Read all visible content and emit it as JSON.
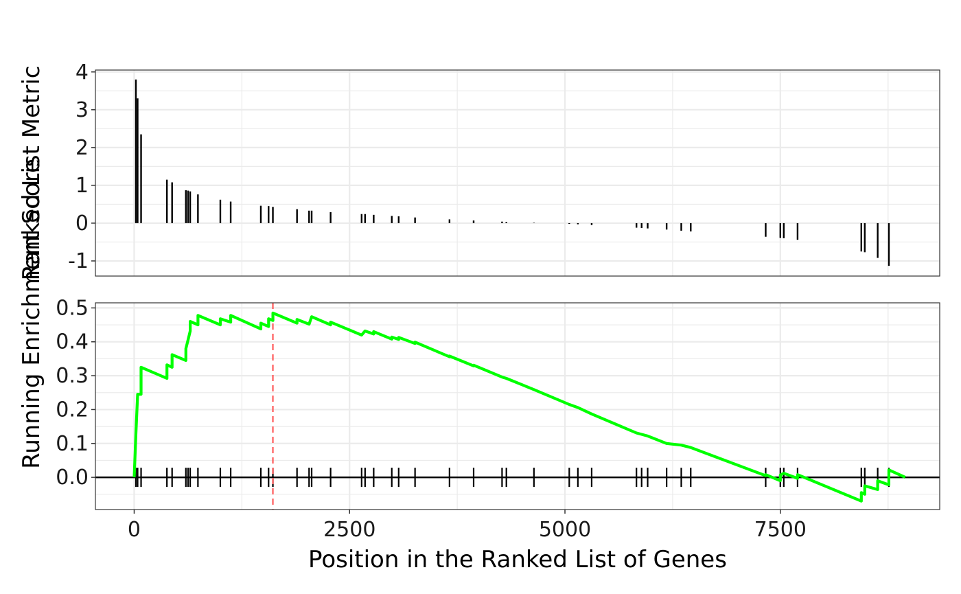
{
  "chart_data": {
    "type": "line",
    "xlabel": "Position in the Ranked List of Genes",
    "x_ticks": [
      0,
      2500,
      5000,
      7500
    ],
    "xlim": [
      -450,
      9350
    ],
    "colors": {
      "running_es": "#00ff00",
      "peak_line": "#ff5a5a",
      "hits": "#000000",
      "panel_border": "#333333",
      "grid": "#ebebeb"
    },
    "top_panel": {
      "ylabel": "Ranked List Metric",
      "ylim": [
        -1.4,
        4.05
      ],
      "y_ticks": [
        4,
        3,
        2,
        1,
        0,
        -1
      ],
      "y_tick_labels": [
        "4",
        "3",
        "2",
        "1",
        "0",
        "-1"
      ],
      "bars": [
        {
          "x": 20,
          "y": 3.8
        },
        {
          "x": 40,
          "y": 3.3
        },
        {
          "x": 80,
          "y": 2.35
        },
        {
          "x": 380,
          "y": 1.15
        },
        {
          "x": 440,
          "y": 1.08
        },
        {
          "x": 600,
          "y": 0.87
        },
        {
          "x": 625,
          "y": 0.86
        },
        {
          "x": 650,
          "y": 0.84
        },
        {
          "x": 740,
          "y": 0.76
        },
        {
          "x": 1000,
          "y": 0.62
        },
        {
          "x": 1120,
          "y": 0.57
        },
        {
          "x": 1470,
          "y": 0.46
        },
        {
          "x": 1560,
          "y": 0.45
        },
        {
          "x": 1610,
          "y": 0.43
        },
        {
          "x": 1890,
          "y": 0.37
        },
        {
          "x": 2030,
          "y": 0.33
        },
        {
          "x": 2060,
          "y": 0.33
        },
        {
          "x": 2280,
          "y": 0.29
        },
        {
          "x": 2640,
          "y": 0.24
        },
        {
          "x": 2680,
          "y": 0.24
        },
        {
          "x": 2780,
          "y": 0.22
        },
        {
          "x": 2990,
          "y": 0.19
        },
        {
          "x": 3070,
          "y": 0.18
        },
        {
          "x": 3260,
          "y": 0.15
        },
        {
          "x": 3660,
          "y": 0.1
        },
        {
          "x": 3940,
          "y": 0.07
        },
        {
          "x": 4270,
          "y": 0.04
        },
        {
          "x": 4320,
          "y": 0.03
        },
        {
          "x": 4640,
          "y": 0.01
        },
        {
          "x": 5050,
          "y": -0.02
        },
        {
          "x": 5150,
          "y": -0.03
        },
        {
          "x": 5310,
          "y": -0.05
        },
        {
          "x": 5830,
          "y": -0.12
        },
        {
          "x": 5890,
          "y": -0.13
        },
        {
          "x": 5960,
          "y": -0.14
        },
        {
          "x": 6180,
          "y": -0.17
        },
        {
          "x": 6350,
          "y": -0.2
        },
        {
          "x": 6460,
          "y": -0.22
        },
        {
          "x": 7330,
          "y": -0.36
        },
        {
          "x": 7500,
          "y": -0.39
        },
        {
          "x": 7540,
          "y": -0.4
        },
        {
          "x": 7700,
          "y": -0.44
        },
        {
          "x": 8440,
          "y": -0.75
        },
        {
          "x": 8480,
          "y": -0.77
        },
        {
          "x": 8630,
          "y": -0.92
        },
        {
          "x": 8760,
          "y": -1.13
        }
      ]
    },
    "bottom_panel": {
      "ylabel": "Running Enrichment Score",
      "ylim": [
        -0.095,
        0.515
      ],
      "y_ticks": [
        0.5,
        0.4,
        0.3,
        0.2,
        0.1,
        0.0
      ],
      "y_tick_labels": [
        "0.5",
        "0.4",
        "0.3",
        "0.2",
        "0.1",
        "0.0"
      ],
      "peak_x": 1610,
      "hit_positions": [
        20,
        40,
        80,
        380,
        440,
        600,
        625,
        650,
        740,
        1000,
        1120,
        1470,
        1560,
        1610,
        1890,
        2030,
        2060,
        2280,
        2640,
        2680,
        2780,
        2990,
        3070,
        3260,
        3660,
        3940,
        4270,
        4320,
        4640,
        5050,
        5150,
        5310,
        5830,
        5890,
        5960,
        6180,
        6350,
        6460,
        7330,
        7500,
        7540,
        7700,
        8440,
        8480,
        8630,
        8760
      ],
      "running_es": [
        [
          0,
          0.0
        ],
        [
          20,
          0.13
        ],
        [
          40,
          0.245
        ],
        [
          80,
          0.245
        ],
        [
          80,
          0.325
        ],
        [
          380,
          0.292
        ],
        [
          380,
          0.332
        ],
        [
          440,
          0.325
        ],
        [
          440,
          0.362
        ],
        [
          600,
          0.345
        ],
        [
          600,
          0.38
        ],
        [
          625,
          0.405
        ],
        [
          650,
          0.432
        ],
        [
          650,
          0.46
        ],
        [
          740,
          0.45
        ],
        [
          740,
          0.478
        ],
        [
          1000,
          0.45
        ],
        [
          1000,
          0.468
        ],
        [
          1120,
          0.458
        ],
        [
          1120,
          0.478
        ],
        [
          1470,
          0.438
        ],
        [
          1470,
          0.455
        ],
        [
          1560,
          0.445
        ],
        [
          1560,
          0.468
        ],
        [
          1610,
          0.463
        ],
        [
          1610,
          0.485
        ],
        [
          1890,
          0.455
        ],
        [
          1890,
          0.466
        ],
        [
          2030,
          0.452
        ],
        [
          2060,
          0.474
        ],
        [
          2280,
          0.45
        ],
        [
          2280,
          0.458
        ],
        [
          2640,
          0.42
        ],
        [
          2680,
          0.432
        ],
        [
          2780,
          0.423
        ],
        [
          2780,
          0.43
        ],
        [
          2990,
          0.408
        ],
        [
          2990,
          0.414
        ],
        [
          3070,
          0.407
        ],
        [
          3070,
          0.413
        ],
        [
          3260,
          0.395
        ],
        [
          3260,
          0.399
        ],
        [
          3660,
          0.356
        ],
        [
          3660,
          0.358
        ],
        [
          3940,
          0.329
        ],
        [
          3940,
          0.331
        ],
        [
          4270,
          0.296
        ],
        [
          4320,
          0.292
        ],
        [
          4640,
          0.259
        ],
        [
          5050,
          0.215
        ],
        [
          5150,
          0.206
        ],
        [
          5310,
          0.187
        ],
        [
          5830,
          0.131
        ],
        [
          5890,
          0.127
        ],
        [
          5960,
          0.122
        ],
        [
          6180,
          0.1
        ],
        [
          6350,
          0.095
        ],
        [
          6460,
          0.088
        ],
        [
          7330,
          0.005
        ],
        [
          7330,
          0.008
        ],
        [
          7500,
          -0.01
        ],
        [
          7500,
          0.007
        ],
        [
          7540,
          0.012
        ],
        [
          7700,
          -0.003
        ],
        [
          7700,
          0.008
        ],
        [
          8440,
          -0.07
        ],
        [
          8440,
          -0.045
        ],
        [
          8480,
          -0.05
        ],
        [
          8480,
          -0.025
        ],
        [
          8630,
          -0.036
        ],
        [
          8630,
          -0.01
        ],
        [
          8760,
          -0.022
        ],
        [
          8760,
          0.022
        ],
        [
          8950,
          0.0
        ]
      ]
    }
  }
}
